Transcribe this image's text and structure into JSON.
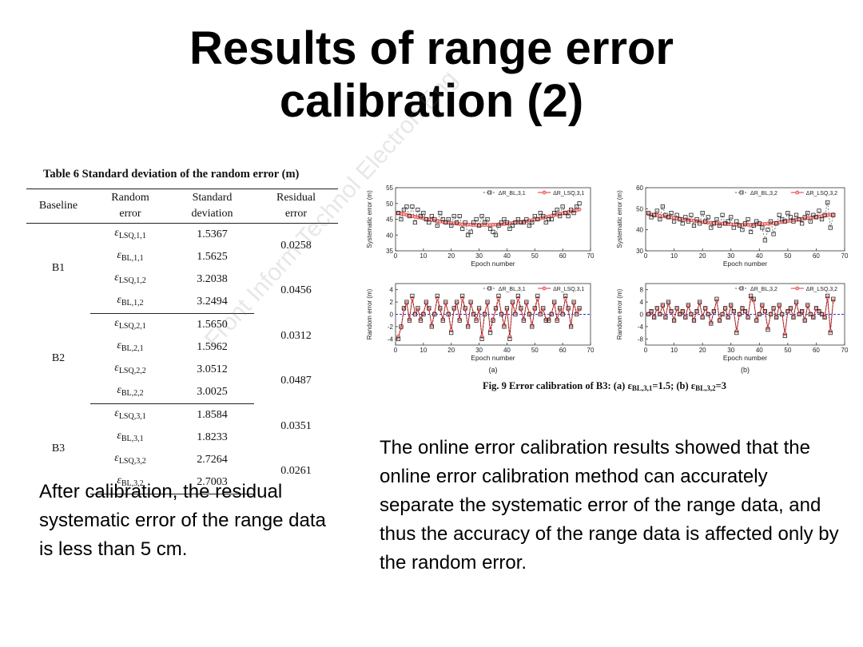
{
  "slide": {
    "title_line1": "Results of range error",
    "title_line2": "calibration (2)",
    "text_left": "After calibration, the residual systematic error of the range data is less than 5 cm.",
    "text_right": "The online error calibration results showed that the online error calibration method can accurately separate the systematic error of the range data, and thus the accuracy of the range data is affected only by the random error.",
    "watermark": "Front Inform Technol Electron Eng"
  },
  "table": {
    "caption": "Table 6  Standard deviation of the random error (m)",
    "headers": {
      "baseline": "Baseline",
      "random_1": "Random",
      "random_2": "error",
      "std_1": "Standard",
      "std_2": "deviation",
      "res_1": "Residual",
      "res_2": "error"
    },
    "groups": [
      {
        "baseline": "B1",
        "rows": [
          {
            "sym": "ε",
            "sub": "LSQ,1,1",
            "std": "1.5367"
          },
          {
            "sym": "ε",
            "sub": "BL,1,1",
            "std": "1.5625"
          },
          {
            "sym": "ε",
            "sub": "LSQ,1,2",
            "std": "3.2038"
          },
          {
            "sym": "ε",
            "sub": "BL,1,2",
            "std": "3.2494"
          }
        ],
        "residuals": [
          "0.0258",
          "0.0456"
        ]
      },
      {
        "baseline": "B2",
        "rows": [
          {
            "sym": "ε",
            "sub": "LSQ,2,1",
            "std": "1.5650"
          },
          {
            "sym": "ε",
            "sub": "BL,2,1",
            "std": "1.5962"
          },
          {
            "sym": "ε",
            "sub": "LSQ,2,2",
            "std": "3.0512"
          },
          {
            "sym": "ε",
            "sub": "BL,2,2",
            "std": "3.0025"
          }
        ],
        "residuals": [
          "0.0312",
          "0.0487"
        ]
      },
      {
        "baseline": "B3",
        "rows": [
          {
            "sym": "ε",
            "sub": "LSQ,3,1",
            "std": "1.8584"
          },
          {
            "sym": "ε",
            "sub": "BL,3,1",
            "std": "1.8233"
          },
          {
            "sym": "ε",
            "sub": "LSQ,3,2",
            "std": "2.7264"
          },
          {
            "sym": "ε",
            "sub": "BL,3,2",
            "std": "2.7003"
          }
        ],
        "residuals": [
          "0.0351",
          "0.0261"
        ]
      }
    ]
  },
  "figure": {
    "caption_prefix": "Fig. 9  Error calibration of B3: (a) ",
    "caption_a_sym": "ε",
    "caption_a_sub": "BL,3,1",
    "caption_a_val": "=1.5; (b) ",
    "caption_b_sym": "ε",
    "caption_b_sub": "BL,3,2",
    "caption_b_val": "=3",
    "sub_a": "(a)",
    "sub_b": "(b)",
    "colors": {
      "bl": "#222222",
      "lsq": "#e23030",
      "zero": "#3030e0"
    }
  },
  "chart_data": [
    {
      "type": "line",
      "panel": "a-top",
      "ylabel": "Systematic error (m)",
      "xlabel": "Epoch number",
      "xlim": [
        0,
        70
      ],
      "ylim": [
        35,
        55
      ],
      "xticks": [
        "0",
        "10",
        "20",
        "30",
        "40",
        "50",
        "60",
        "70"
      ],
      "yticks": [
        "35",
        "40",
        "45",
        "50",
        "55"
      ],
      "legend": [
        "ΔR_BL,3,1",
        "ΔR_LSQ,3,1"
      ],
      "series": [
        {
          "name": "ΔR_BL,3,1",
          "values": [
            47,
            45,
            48,
            49,
            46,
            49,
            44,
            48,
            46,
            47,
            45,
            44,
            46,
            45,
            43,
            47,
            45,
            44,
            45,
            43,
            46,
            44,
            46,
            42,
            44,
            40,
            41,
            44,
            45,
            43,
            46,
            44,
            45,
            42,
            41,
            40,
            43,
            44,
            45,
            44,
            42,
            43,
            44,
            45,
            44,
            44,
            45,
            43,
            44,
            46,
            45,
            47,
            46,
            44,
            45,
            45,
            47,
            48,
            46,
            49,
            47,
            46,
            48,
            47,
            49,
            50
          ]
        },
        {
          "name": "ΔR_LSQ,3,1",
          "values": [
            47.0,
            46.8,
            46.6,
            46.4,
            46.2,
            46.0,
            45.8,
            45.6,
            45.5,
            45.3,
            45.1,
            44.9,
            44.8,
            44.6,
            44.5,
            44.3,
            44.2,
            44.0,
            43.9,
            43.8,
            43.7,
            43.6,
            43.5,
            43.4,
            43.4,
            43.3,
            43.3,
            43.2,
            43.2,
            43.2,
            43.2,
            43.2,
            43.2,
            43.2,
            43.3,
            43.3,
            43.4,
            43.4,
            43.5,
            43.6,
            43.7,
            43.8,
            43.9,
            44.0,
            44.1,
            44.3,
            44.4,
            44.6,
            44.7,
            44.9,
            45.1,
            45.3,
            45.5,
            45.7,
            45.9,
            46.1,
            46.3,
            46.5,
            46.7,
            46.9,
            47.1,
            47.3,
            47.5,
            47.7,
            47.9,
            48.1
          ]
        }
      ]
    },
    {
      "type": "line",
      "panel": "b-top",
      "ylabel": "Systematic error (m)",
      "xlabel": "Epoch number",
      "xlim": [
        0,
        70
      ],
      "ylim": [
        30,
        60
      ],
      "xticks": [
        "0",
        "10",
        "20",
        "30",
        "40",
        "50",
        "60",
        "70"
      ],
      "yticks": [
        "30",
        "40",
        "50",
        "60"
      ],
      "legend": [
        "ΔR_BL,3,2",
        "ΔR_LSQ,3,2"
      ],
      "series": [
        {
          "name": "ΔR_BL,3,2",
          "values": [
            48,
            46,
            47,
            49,
            45,
            51,
            47,
            46,
            48,
            44,
            47,
            45,
            43,
            46,
            44,
            47,
            42,
            45,
            43,
            48,
            44,
            46,
            41,
            43,
            45,
            42,
            47,
            43,
            44,
            46,
            41,
            44,
            42,
            40,
            43,
            45,
            39,
            42,
            44,
            43,
            41,
            35,
            40,
            44,
            38,
            43,
            47,
            45,
            44,
            48,
            46,
            44,
            47,
            45,
            43,
            46,
            48,
            44,
            47,
            46,
            49,
            45,
            47,
            53,
            41,
            47
          ]
        },
        {
          "name": "ΔR_LSQ,3,2",
          "values": [
            47.5,
            47.3,
            47.1,
            46.9,
            46.7,
            46.5,
            46.3,
            46.1,
            45.9,
            45.7,
            45.5,
            45.3,
            45.1,
            44.9,
            44.7,
            44.5,
            44.3,
            44.1,
            43.9,
            43.7,
            43.5,
            43.4,
            43.3,
            43.2,
            43.1,
            43.0,
            42.9,
            42.8,
            42.7,
            42.6,
            42.5,
            42.5,
            42.4,
            42.4,
            42.4,
            42.4,
            42.4,
            42.5,
            42.5,
            42.6,
            42.7,
            42.8,
            42.9,
            43.0,
            43.1,
            43.3,
            43.5,
            43.7,
            43.9,
            44.1,
            44.3,
            44.5,
            44.7,
            44.9,
            45.1,
            45.3,
            45.5,
            45.7,
            45.9,
            46.1,
            46.3,
            46.5,
            46.7,
            46.9,
            47.1,
            47.3
          ]
        }
      ]
    },
    {
      "type": "line",
      "panel": "a-bottom",
      "ylabel": "Random error (m)",
      "xlabel": "Epoch number",
      "xlim": [
        0,
        70
      ],
      "ylim": [
        -5,
        5
      ],
      "xticks": [
        "0",
        "10",
        "20",
        "30",
        "40",
        "50",
        "60",
        "70"
      ],
      "yticks": [
        "-4",
        "-2",
        "0",
        "2",
        "4"
      ],
      "legend": [
        "ΔR_BL,3,1",
        "ΔR_LSQ,3,1"
      ],
      "series": [
        {
          "name": "ΔR_BL,3,1",
          "values": [
            -4,
            -2,
            1,
            2,
            -1,
            3,
            0,
            1,
            -1,
            0,
            2,
            1,
            -2,
            0,
            3,
            1,
            -1,
            2,
            0,
            -3,
            1,
            2,
            -1,
            3,
            1,
            -2,
            2,
            0,
            -1,
            1,
            -4,
            0,
            2,
            -3,
            -1,
            1,
            3,
            0,
            -2,
            1,
            -4,
            2,
            0,
            3,
            1,
            -1,
            2,
            0,
            -2,
            1,
            3,
            0,
            1,
            -1,
            -1,
            0,
            2,
            -1,
            1,
            0,
            3,
            1,
            -2,
            2,
            0,
            1
          ]
        },
        {
          "name": "ΔR_LSQ,3,1",
          "values": [
            -3.6,
            -2.2,
            0.8,
            1.8,
            -0.8,
            2.6,
            0.2,
            0.8,
            -0.8,
            0.2,
            1.8,
            0.8,
            -1.8,
            0.2,
            2.6,
            0.8,
            -0.8,
            1.8,
            0.2,
            -2.6,
            0.8,
            1.8,
            -0.8,
            2.6,
            0.8,
            -1.8,
            1.8,
            0.2,
            -0.8,
            0.8,
            -3.6,
            0.2,
            1.8,
            -2.6,
            -0.8,
            0.8,
            2.6,
            0.2,
            -1.8,
            0.8,
            -3.6,
            1.8,
            0.2,
            2.6,
            0.8,
            -0.8,
            1.8,
            0.2,
            -1.8,
            0.8,
            2.6,
            0.2,
            0.8,
            -0.8,
            -0.8,
            0.2,
            1.8,
            -0.8,
            0.8,
            0.2,
            2.6,
            0.8,
            -1.8,
            1.8,
            0.2,
            0.8
          ]
        }
      ]
    },
    {
      "type": "line",
      "panel": "b-bottom",
      "ylabel": "Random error (m)",
      "xlabel": "Epoch number",
      "xlim": [
        0,
        70
      ],
      "ylim": [
        -10,
        10
      ],
      "xticks": [
        "0",
        "10",
        "20",
        "30",
        "40",
        "50",
        "60",
        "70"
      ],
      "yticks": [
        "-8",
        "-4",
        "0",
        "4",
        "8"
      ],
      "legend": [
        "ΔR_BL,3,2",
        "ΔR_LSQ,3,2"
      ],
      "series": [
        {
          "name": "ΔR_BL,3,2",
          "values": [
            0,
            1,
            -1,
            2,
            0,
            3,
            -1,
            4,
            1,
            -2,
            2,
            0,
            1,
            -1,
            3,
            0,
            -2,
            1,
            4,
            -1,
            2,
            0,
            -3,
            1,
            5,
            -2,
            0,
            2,
            -1,
            3,
            1,
            -6,
            0,
            2,
            1,
            -1,
            6,
            5,
            -2,
            0,
            3,
            1,
            -5,
            0,
            2,
            -1,
            3,
            0,
            -7,
            1,
            2,
            -1,
            4,
            0,
            1,
            -2,
            3,
            0,
            -1,
            2,
            1,
            0,
            -1,
            6,
            -6,
            5
          ]
        },
        {
          "name": "ΔR_LSQ,3,2",
          "values": [
            0.2,
            0.9,
            -0.8,
            1.8,
            0.2,
            2.7,
            -0.8,
            3.6,
            0.9,
            -1.8,
            1.8,
            0.2,
            0.9,
            -0.8,
            2.7,
            0.2,
            -1.8,
            0.9,
            3.6,
            -0.8,
            1.8,
            0.2,
            -2.7,
            0.9,
            4.5,
            -1.8,
            0.2,
            1.8,
            -0.8,
            2.7,
            0.9,
            -5.4,
            0.2,
            1.8,
            0.9,
            -0.8,
            5.4,
            4.5,
            -1.8,
            0.2,
            2.7,
            0.9,
            -4.5,
            0.2,
            1.8,
            -0.8,
            2.7,
            0.2,
            -6.3,
            0.9,
            1.8,
            -0.8,
            3.6,
            0.2,
            0.9,
            -1.8,
            2.7,
            0.2,
            -0.8,
            1.8,
            0.9,
            0.2,
            -0.8,
            5.4,
            -5.4,
            4.5
          ]
        }
      ]
    }
  ]
}
